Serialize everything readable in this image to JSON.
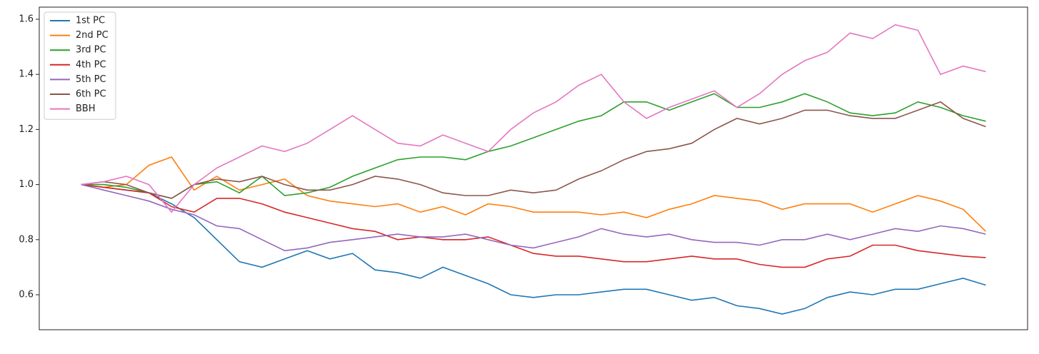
{
  "chart_data": {
    "type": "line",
    "xlim": [
      -1.85,
      41.85
    ],
    "ylim": [
      0.473,
      1.644
    ],
    "yticks": [
      0.6,
      0.8,
      {
        "value": 1.0,
        "label": "1.0"
      },
      1.2,
      1.4,
      1.6
    ],
    "grid": false,
    "legend": "upper left",
    "series": [
      {
        "name": "1st PC",
        "color": "#1f77b4",
        "values": [
          1.0,
          0.99,
          0.98,
          0.97,
          0.93,
          0.88,
          0.8,
          0.72,
          0.7,
          0.73,
          0.76,
          0.73,
          0.75,
          0.69,
          0.68,
          0.66,
          0.7,
          0.67,
          0.64,
          0.6,
          0.59,
          0.6,
          0.6,
          0.61,
          0.62,
          0.62,
          0.6,
          0.58,
          0.59,
          0.56,
          0.55,
          0.53,
          0.55,
          0.59,
          0.61,
          0.6,
          0.62,
          0.62,
          0.64,
          0.66,
          0.635
        ]
      },
      {
        "name": "2nd PC",
        "color": "#ff7f0e",
        "values": [
          1.0,
          0.99,
          1.0,
          1.07,
          1.1,
          0.98,
          1.03,
          0.98,
          1.0,
          1.02,
          0.96,
          0.94,
          0.93,
          0.92,
          0.93,
          0.9,
          0.92,
          0.89,
          0.93,
          0.92,
          0.9,
          0.9,
          0.9,
          0.89,
          0.9,
          0.88,
          0.91,
          0.93,
          0.96,
          0.95,
          0.94,
          0.91,
          0.93,
          0.93,
          0.93,
          0.9,
          0.93,
          0.96,
          0.94,
          0.91,
          0.83
        ]
      },
      {
        "name": "3rd PC",
        "color": "#2ca02c",
        "values": [
          1.0,
          1.0,
          0.99,
          0.97,
          0.95,
          1.0,
          1.01,
          0.97,
          1.03,
          0.96,
          0.97,
          0.99,
          1.03,
          1.06,
          1.09,
          1.1,
          1.1,
          1.09,
          1.12,
          1.14,
          1.17,
          1.2,
          1.23,
          1.25,
          1.3,
          1.3,
          1.27,
          1.3,
          1.33,
          1.28,
          1.28,
          1.3,
          1.33,
          1.3,
          1.26,
          1.25,
          1.26,
          1.3,
          1.28,
          1.25,
          1.23
        ]
      },
      {
        "name": "4th PC",
        "color": "#d62728",
        "values": [
          1.0,
          0.99,
          0.98,
          0.97,
          0.92,
          0.9,
          0.95,
          0.95,
          0.93,
          0.9,
          0.88,
          0.86,
          0.84,
          0.83,
          0.8,
          0.81,
          0.8,
          0.8,
          0.81,
          0.78,
          0.75,
          0.74,
          0.74,
          0.73,
          0.72,
          0.72,
          0.73,
          0.74,
          0.73,
          0.73,
          0.71,
          0.7,
          0.7,
          0.73,
          0.74,
          0.78,
          0.78,
          0.76,
          0.75,
          0.74,
          0.735
        ]
      },
      {
        "name": "5th PC",
        "color": "#9467bd",
        "values": [
          1.0,
          0.98,
          0.96,
          0.94,
          0.91,
          0.89,
          0.85,
          0.84,
          0.8,
          0.76,
          0.77,
          0.79,
          0.8,
          0.81,
          0.82,
          0.81,
          0.81,
          0.82,
          0.8,
          0.78,
          0.77,
          0.79,
          0.81,
          0.84,
          0.82,
          0.81,
          0.82,
          0.8,
          0.79,
          0.79,
          0.78,
          0.8,
          0.8,
          0.82,
          0.8,
          0.82,
          0.84,
          0.83,
          0.85,
          0.84,
          0.82
        ]
      },
      {
        "name": "6th PC",
        "color": "#8c564b",
        "values": [
          1.0,
          1.01,
          1.0,
          0.97,
          0.95,
          1.0,
          1.02,
          1.01,
          1.03,
          1.0,
          0.98,
          0.98,
          1.0,
          1.03,
          1.02,
          1.0,
          0.97,
          0.96,
          0.96,
          0.98,
          0.97,
          0.98,
          1.02,
          1.05,
          1.09,
          1.12,
          1.13,
          1.15,
          1.2,
          1.24,
          1.22,
          1.24,
          1.27,
          1.27,
          1.25,
          1.24,
          1.24,
          1.27,
          1.3,
          1.24,
          1.21
        ]
      },
      {
        "name": "BBH",
        "color": "#e377c2",
        "values": [
          1.0,
          1.01,
          1.03,
          1.0,
          0.9,
          1.0,
          1.06,
          1.1,
          1.14,
          1.12,
          1.15,
          1.2,
          1.25,
          1.2,
          1.15,
          1.14,
          1.18,
          1.15,
          1.12,
          1.2,
          1.26,
          1.3,
          1.36,
          1.4,
          1.3,
          1.24,
          1.28,
          1.31,
          1.34,
          1.28,
          1.33,
          1.4,
          1.45,
          1.48,
          1.55,
          1.53,
          1.58,
          1.56,
          1.4,
          1.43,
          1.41
        ]
      }
    ]
  }
}
